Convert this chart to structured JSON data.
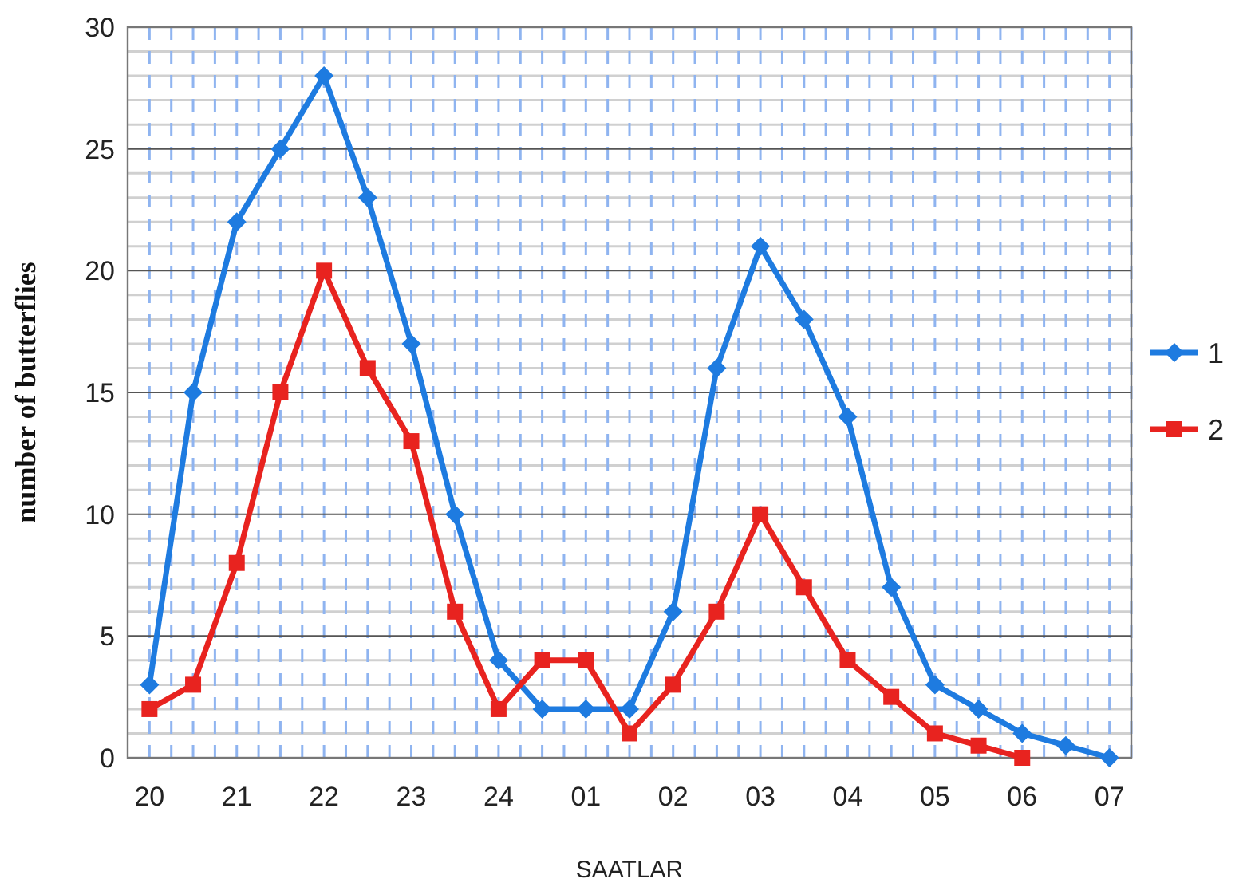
{
  "chart_data": {
    "type": "line",
    "xlabel": "SAATLAR",
    "ylabel": "number of butterflies",
    "categories": [
      "20",
      null,
      "21",
      null,
      "22",
      null,
      "23",
      null,
      "24",
      null,
      "01",
      null,
      "02",
      null,
      "03",
      null,
      "04",
      null,
      "05",
      null,
      "06",
      null,
      "07"
    ],
    "series": [
      {
        "name": "1",
        "color": "#1e7be0",
        "marker": "diamond",
        "values": [
          3,
          15,
          22,
          25,
          28,
          23,
          17,
          10,
          4,
          2,
          2,
          2,
          6,
          16,
          21,
          18,
          14,
          7,
          3,
          2,
          1,
          0.5,
          0
        ]
      },
      {
        "name": "2",
        "color": "#e8231f",
        "marker": "square",
        "values": [
          2,
          3,
          8,
          15,
          20,
          16,
          13,
          6,
          2,
          4,
          4,
          1,
          3,
          6,
          10,
          7,
          4,
          2.5,
          1,
          0.5,
          0,
          null,
          null
        ]
      }
    ],
    "ylim": [
      0,
      30
    ],
    "yticks": [
      0,
      5,
      10,
      15,
      20,
      25,
      30
    ],
    "grid": true,
    "legend": "right"
  }
}
